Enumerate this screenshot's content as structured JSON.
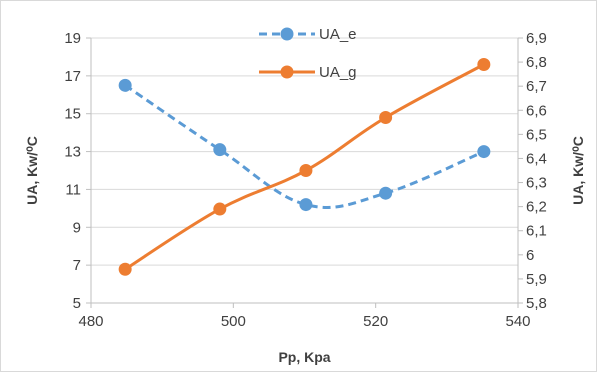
{
  "chart_data": {
    "type": "line",
    "title": "",
    "xlabel": "Pp, Kpa",
    "ylabel": "UA, Kw/⁰C",
    "y2label": "UA, Kw/⁰C",
    "xlim": [
      480,
      540
    ],
    "xticks": [
      "480",
      "500",
      "520",
      "540"
    ],
    "ylim": [
      5,
      19
    ],
    "yticks": [
      "5",
      "7",
      "9",
      "11",
      "13",
      "15",
      "17",
      "19"
    ],
    "y2lim": [
      5.8,
      6.9
    ],
    "y2ticks": [
      "5,8",
      "5,9",
      "6",
      "6,1",
      "6,2",
      "6,3",
      "6,4",
      "6,5",
      "6,6",
      "6,7",
      "6,8",
      "6,9"
    ],
    "grid": "horizontal",
    "legend_position": "top-center",
    "series": [
      {
        "name": "UA_e",
        "axis": "left",
        "style": "dashed",
        "color": "#5B9BD5",
        "x": [
          484.8,
          498.1,
          510.2,
          521.4,
          535.2
        ],
        "y": [
          16.5,
          13.1,
          10.2,
          10.8,
          13.0
        ]
      },
      {
        "name": "UA_g",
        "axis": "right",
        "style": "solid",
        "color": "#ED7D31",
        "x": [
          484.8,
          498.1,
          510.2,
          521.4,
          535.2
        ],
        "y": [
          5.94,
          6.19,
          6.35,
          6.57,
          6.79
        ]
      }
    ]
  }
}
